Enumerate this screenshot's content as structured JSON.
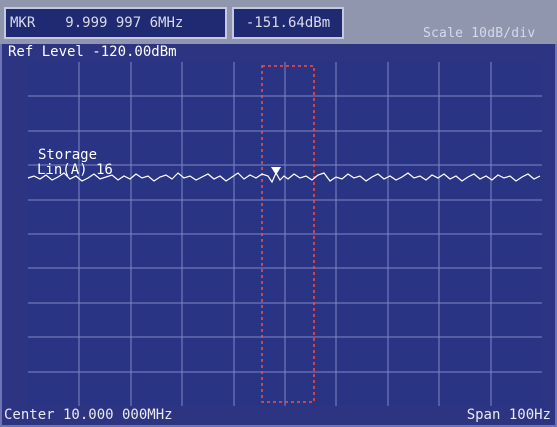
{
  "marker": {
    "label": "MKR",
    "frequency": "9.999 997 6MHz",
    "amplitude": "-151.64dBm"
  },
  "scale": "Scale  10dB/div",
  "ref_level": "Ref Level -120.00dBm",
  "trace": {
    "storage_label": "Storage",
    "lin_label": "Lin(A)  16"
  },
  "footer": {
    "center": "Center 10.000 000MHz",
    "span": "Span 100Hz"
  },
  "colors": {
    "screen_bg": "#2d3583",
    "grid": "#7f86c6",
    "trace": "#ffffff",
    "marker_window": "#ff4b3a"
  }
}
